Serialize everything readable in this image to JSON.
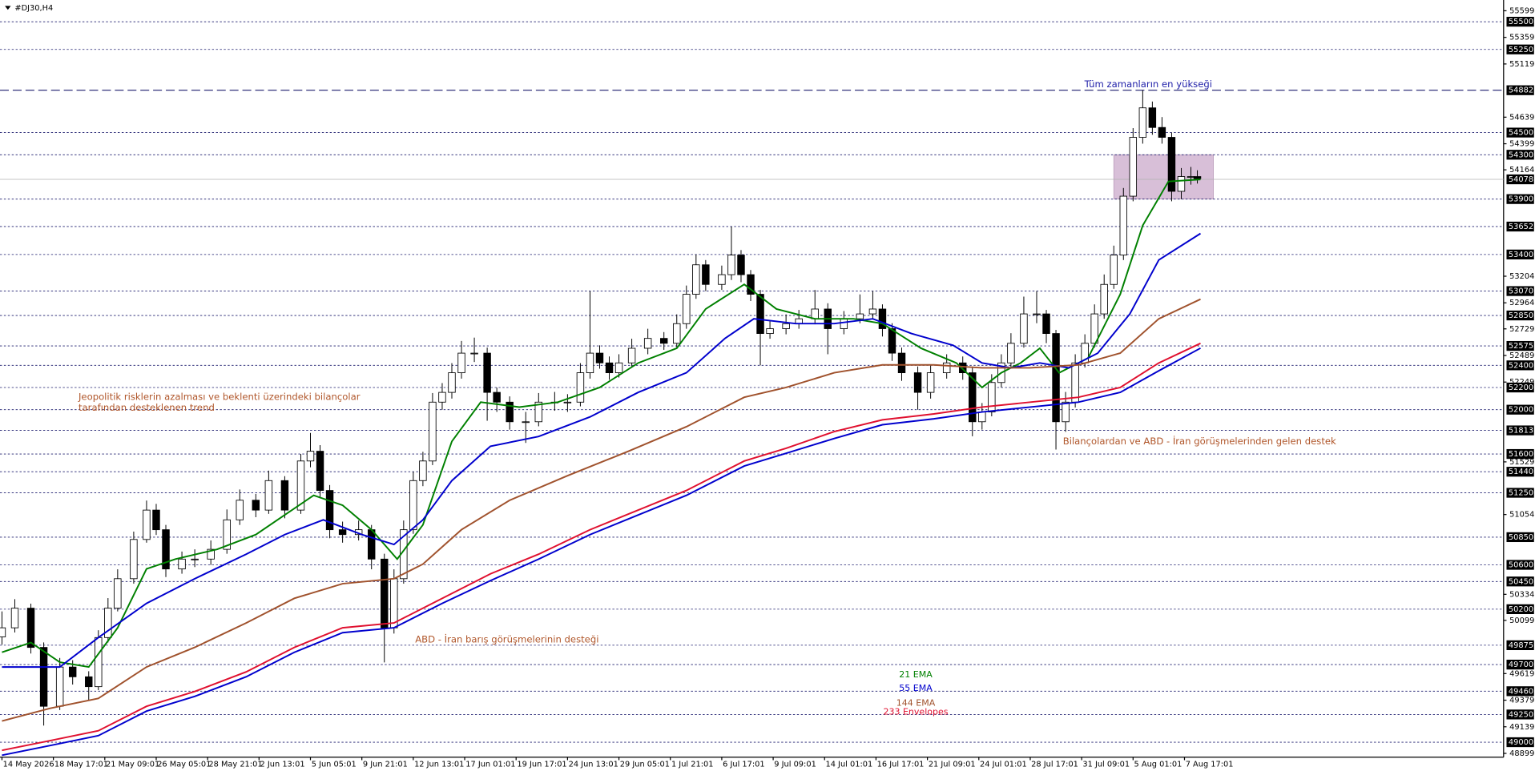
{
  "chart_data": {
    "type": "candlestick",
    "title": "#DJ30,H4",
    "bull_color": "#ffffff",
    "bear_color": "#000000",
    "x": [
      0,
      4,
      9,
      13,
      18,
      22,
      27,
      30,
      33,
      36,
      41,
      45,
      48,
      51,
      56,
      60,
      65,
      70,
      74,
      79,
      83,
      88,
      93,
      96,
      99,
      102,
      106,
      111,
      115,
      119,
      122,
      125,
      128,
      131,
      134,
      137,
      140,
      143,
      147,
      151,
      154,
      158,
      163,
      167,
      172,
      176,
      180,
      183,
      186,
      189,
      192,
      196,
      201,
      206,
      210,
      213,
      216,
      219,
      224,
      227,
      230,
      233,
      236,
      239,
      244,
      248,
      253,
      257,
      262,
      267,
      271,
      274,
      277,
      280,
      285,
      289,
      294,
      299,
      302,
      305,
      308,
      311,
      314,
      318,
      322,
      325,
      328,
      331,
      334,
      337,
      340,
      343,
      346,
      349,
      352,
      355,
      358,
      361,
      364,
      367,
      370,
      372
    ],
    "open": [
      49950,
      50032,
      50209,
      49855,
      49324,
      49678,
      49590,
      49501,
      49944,
      50209,
      50475,
      50829,
      51094,
      50917,
      50563,
      50652,
      50652,
      50740,
      51006,
      51183,
      51094,
      51360,
      51094,
      51537,
      51625,
      51271,
      50917,
      50873,
      50917,
      50652,
      50032,
      50475,
      50917,
      51360,
      51537,
      52068,
      52156,
      52333,
      52510,
      52510,
      52156,
      52068,
      51891,
      51891,
      52068,
      52068,
      52068,
      52333,
      52510,
      52422,
      52333,
      52422,
      52554,
      52643,
      52599,
      52776,
      53041,
      53307,
      53130,
      53218,
      53395,
      53218,
      53041,
      52687,
      52731,
      52776,
      52820,
      52908,
      52731,
      52820,
      52864,
      52908,
      52731,
      52510,
      52333,
      52156,
      52333,
      52422,
      52333,
      51891,
      51979,
      52245,
      52422,
      52599,
      52864,
      52864,
      52687,
      51891,
      52068,
      52422,
      52599,
      52864,
      53130,
      53395,
      53926,
      54457,
      54723,
      54546,
      54457,
      53970,
      54103,
      54103
    ],
    "high": [
      50180,
      50290,
      50250,
      49900,
      49760,
      49740,
      49640,
      50010,
      50300,
      50560,
      50900,
      51180,
      51150,
      50960,
      50720,
      50740,
      50820,
      51100,
      51280,
      51240,
      51450,
      51400,
      51600,
      51790,
      51680,
      51320,
      50990,
      51000,
      50960,
      50700,
      50560,
      51000,
      51440,
      51620,
      52150,
      52240,
      52420,
      52620,
      52650,
      52560,
      52200,
      52120,
      51980,
      52150,
      52160,
      52140,
      52420,
      53070,
      52580,
      52480,
      52500,
      52640,
      52730,
      52700,
      52860,
      53120,
      53400,
      53350,
      53300,
      53652,
      53440,
      53260,
      53080,
      52800,
      52860,
      52900,
      53080,
      52960,
      52890,
      53040,
      53070,
      52950,
      52780,
      52560,
      52390,
      52400,
      52500,
      52480,
      52380,
      52060,
      52320,
      52500,
      52690,
      53020,
      53070,
      52900,
      52720,
      52160,
      52500,
      52680,
      52950,
      53220,
      53480,
      54000,
      54540,
      54882,
      54780,
      54640,
      54500,
      54180,
      54190,
      54160
    ],
    "low": [
      49880,
      49990,
      49800,
      49150,
      49290,
      49520,
      49380,
      49470,
      49900,
      50180,
      50430,
      50800,
      50870,
      50490,
      50520,
      50580,
      50600,
      50700,
      50960,
      51030,
      51060,
      51020,
      51060,
      51480,
      51200,
      50840,
      50800,
      50820,
      50560,
      49720,
      49980,
      50430,
      50880,
      51310,
      51500,
      52000,
      52100,
      52280,
      52430,
      51900,
      51980,
      51820,
      51700,
      51850,
      51990,
      51980,
      52030,
      52280,
      52370,
      52270,
      52290,
      52380,
      52500,
      52540,
      52560,
      52730,
      53000,
      53070,
      53080,
      53170,
      53150,
      52980,
      52400,
      52640,
      52680,
      52730,
      52770,
      52500,
      52680,
      52780,
      52820,
      52660,
      52440,
      52260,
      52000,
      52100,
      52280,
      52270,
      51760,
      51820,
      51940,
      52200,
      52370,
      52560,
      52780,
      52600,
      51640,
      51800,
      52020,
      52380,
      52560,
      52820,
      53090,
      53350,
      53880,
      54400,
      54480,
      54400,
      53880,
      53900,
      54030,
      54040
    ],
    "close": [
      50032,
      50209,
      49855,
      49324,
      49678,
      49590,
      49501,
      49944,
      50209,
      50475,
      50829,
      51094,
      50917,
      50563,
      50652,
      50652,
      50740,
      51006,
      51183,
      51094,
      51360,
      51094,
      51537,
      51625,
      51271,
      50917,
      50873,
      50917,
      50652,
      50032,
      50475,
      50917,
      51360,
      51537,
      52068,
      52156,
      52333,
      52510,
      52510,
      52156,
      52068,
      51891,
      51891,
      52068,
      52068,
      52068,
      52333,
      52510,
      52422,
      52333,
      52422,
      52554,
      52643,
      52599,
      52776,
      53041,
      53307,
      53130,
      53218,
      53395,
      53218,
      53041,
      52687,
      52731,
      52776,
      52820,
      52908,
      52731,
      52820,
      52864,
      52908,
      52731,
      52510,
      52333,
      52156,
      52333,
      52422,
      52333,
      51891,
      51979,
      52245,
      52422,
      52599,
      52864,
      52864,
      52687,
      51891,
      52068,
      52422,
      52599,
      52864,
      53130,
      53395,
      53926,
      54457,
      54723,
      54546,
      54457,
      53970,
      54103,
      54103,
      54085
    ],
    "series": [
      {
        "name": "21 EMA",
        "color": "#008000",
        "x": [
          0,
          9,
          18,
          27,
          36,
          45,
          54,
          67,
          79,
          88,
          97,
          106,
          115,
          123,
          131,
          140,
          149,
          161,
          173,
          186,
          198,
          210,
          219,
          231,
          241,
          253,
          265,
          274,
          286,
          297,
          305,
          311,
          317,
          323,
          329,
          338,
          348,
          355,
          363,
          373
        ],
        "values": [
          49811,
          49899,
          49722,
          49678,
          50032,
          50563,
          50652,
          50740,
          50873,
          51050,
          51227,
          51138,
          50917,
          50652,
          50961,
          51714,
          52068,
          52023,
          52068,
          52200,
          52422,
          52554,
          52908,
          53130,
          52908,
          52820,
          52820,
          52776,
          52554,
          52422,
          52200,
          52333,
          52422,
          52554,
          52333,
          52466,
          53041,
          53661,
          54059,
          54077
        ]
      },
      {
        "name": "55 EMA",
        "color": "#0000cd",
        "x": [
          0,
          18,
          30,
          45,
          60,
          76,
          88,
          100,
          112,
          122,
          131,
          140,
          152,
          167,
          183,
          198,
          213,
          225,
          234,
          247,
          259,
          271,
          283,
          296,
          305,
          314,
          323,
          332,
          341,
          351,
          360,
          373
        ],
        "values": [
          49678,
          49678,
          49944,
          50253,
          50475,
          50696,
          50873,
          51006,
          50873,
          50784,
          51006,
          51360,
          51669,
          51758,
          51935,
          52156,
          52333,
          52643,
          52820,
          52776,
          52776,
          52820,
          52687,
          52581,
          52422,
          52377,
          52422,
          52377,
          52510,
          52864,
          53351,
          53590
        ]
      },
      {
        "name": "144 EMA",
        "color": "#a0522d",
        "x": [
          0,
          15,
          30,
          45,
          60,
          76,
          91,
          106,
          122,
          131,
          143,
          158,
          176,
          195,
          213,
          231,
          244,
          259,
          274,
          290,
          305,
          320,
          335,
          348,
          360,
          373
        ],
        "values": [
          49191,
          49306,
          49395,
          49678,
          49855,
          50076,
          50298,
          50430,
          50475,
          50607,
          50917,
          51183,
          51404,
          51625,
          51846,
          52112,
          52200,
          52333,
          52404,
          52404,
          52377,
          52377,
          52404,
          52510,
          52820,
          52997
        ]
      },
      {
        "name": "233 Envelopes",
        "color": "#e0102f",
        "color_lower": "#0000cd",
        "x": [
          0,
          15,
          30,
          45,
          60,
          76,
          91,
          106,
          122,
          137,
          152,
          167,
          183,
          198,
          213,
          231,
          244,
          259,
          274,
          290,
          305,
          320,
          335,
          348,
          360,
          373
        ],
        "values": [
          48926,
          49014,
          49103,
          49324,
          49457,
          49634,
          49855,
          50032,
          50076,
          50298,
          50519,
          50696,
          50917,
          51094,
          51271,
          51537,
          51652,
          51802,
          51908,
          51961,
          52023,
          52068,
          52112,
          52200,
          52422,
          52599
        ],
        "values_lower": [
          48882,
          48970,
          49059,
          49280,
          49413,
          49590,
          49811,
          49988,
          50032,
          50253,
          50457,
          50652,
          50873,
          51050,
          51227,
          51492,
          51607,
          51740,
          51864,
          51917,
          51979,
          52023,
          52068,
          52156,
          52351,
          52555
        ]
      }
    ],
    "xlim": [
      0,
      467
    ],
    "ylim": [
      48882,
      55678
    ],
    "xticks": [
      {
        "value": 0,
        "label": "14 May 2026"
      },
      {
        "value": 16,
        "label": "18 May 17:01"
      },
      {
        "value": 32,
        "label": "21 May 09:01"
      },
      {
        "value": 48,
        "label": "26 May 05:01"
      },
      {
        "value": 64,
        "label": "28 May 21:01"
      },
      {
        "value": 80,
        "label": "2 Jun 13:01"
      },
      {
        "value": 96,
        "label": "5 Jun 05:01"
      },
      {
        "value": 112,
        "label": "9 Jun 21:01"
      },
      {
        "value": 128,
        "label": "12 Jun 13:01"
      },
      {
        "value": 144,
        "label": "17 Jun 01:01"
      },
      {
        "value": 160,
        "label": "19 Jun 17:01"
      },
      {
        "value": 176,
        "label": "24 Jun 13:01"
      },
      {
        "value": 192,
        "label": "29 Jun 05:01"
      },
      {
        "value": 208,
        "label": "1 Jul 21:01"
      },
      {
        "value": 224,
        "label": "6 Jul 17:01"
      },
      {
        "value": 240,
        "label": "9 Jul 09:01"
      },
      {
        "value": 256,
        "label": "14 Jul 01:01"
      },
      {
        "value": 272,
        "label": "16 Jul 17:01"
      },
      {
        "value": 288,
        "label": "21 Jul 09:01"
      },
      {
        "value": 304,
        "label": "24 Jul 01:01"
      },
      {
        "value": 320,
        "label": "28 Jul 17:01"
      },
      {
        "value": 336,
        "label": "31 Jul 09:01"
      },
      {
        "value": 352,
        "label": "5 Aug 01:01"
      },
      {
        "value": 368,
        "label": "7 Aug 17:01"
      }
    ],
    "yticks": [
      55599,
      55359,
      55119,
      54639,
      54399,
      54164,
      53204,
      52964,
      52729,
      52489,
      52249,
      51529,
      51054,
      50334,
      50099,
      49619,
      49379,
      49139,
      48899
    ],
    "levels": [
      55500,
      55250,
      54500,
      54300,
      53900,
      53652,
      53400,
      53070,
      52850,
      52575,
      52400,
      52200,
      52000,
      51813,
      51600,
      51440,
      51250,
      50850,
      50600,
      50450,
      50200,
      49875,
      49700,
      49460,
      49250,
      49000
    ],
    "ath_level": 54882,
    "last_price": 54078,
    "range_box": {
      "x": [
        346,
        377
      ],
      "y": [
        53900,
        54300
      ],
      "color": "#d8bfd8"
    },
    "annotations": [
      {
        "text": "Tüm zamanların en yükseği",
        "color": "#2222aa"
      },
      {
        "text": "Jeopolitik risklerin azalması ve beklenti üzerindeki bilançolar",
        "color": "#b0562a"
      },
      {
        "text": "tarafından desteklenen trend",
        "color": "#b0562a"
      },
      {
        "text": "Bilançolardan ve ABD - İran görüşmelerinden gelen destek",
        "color": "#b0562a"
      },
      {
        "text": "ABD - İran barış görüşmelerinin desteği",
        "color": "#b0562a"
      }
    ]
  }
}
